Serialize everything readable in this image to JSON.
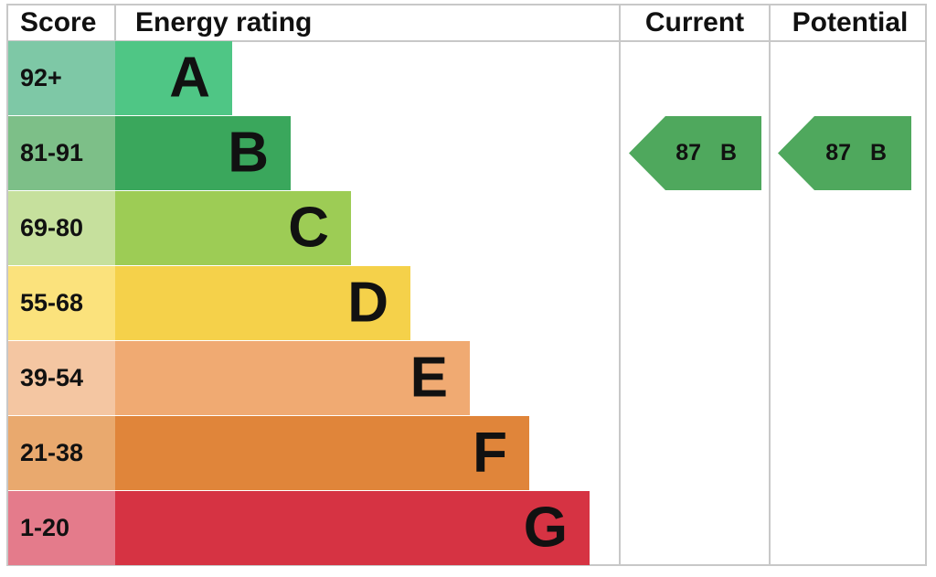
{
  "header": {
    "score": "Score",
    "rating": "Energy rating",
    "current": "Current",
    "potential": "Potential"
  },
  "bands": [
    {
      "range": "92+",
      "letter": "A",
      "color": "#4fc685",
      "light": "#7ec8a6"
    },
    {
      "range": "81-91",
      "letter": "B",
      "color": "#3aa75c",
      "light": "#7dbf88"
    },
    {
      "range": "69-80",
      "letter": "C",
      "color": "#9dcc55",
      "light": "#c6e09d"
    },
    {
      "range": "55-68",
      "letter": "D",
      "color": "#f5d14a",
      "light": "#fbe27c"
    },
    {
      "range": "39-54",
      "letter": "E",
      "color": "#f0aa72",
      "light": "#f4c6a2"
    },
    {
      "range": "21-38",
      "letter": "F",
      "color": "#e0853a",
      "light": "#e9a96e"
    },
    {
      "range": "1-20",
      "letter": "G",
      "color": "#d63343",
      "light": "#e47b8b"
    }
  ],
  "current": {
    "score": 87,
    "letter": "B",
    "color": "#4fa85d"
  },
  "potential": {
    "score": 87,
    "letter": "B",
    "color": "#4fa85d"
  }
}
